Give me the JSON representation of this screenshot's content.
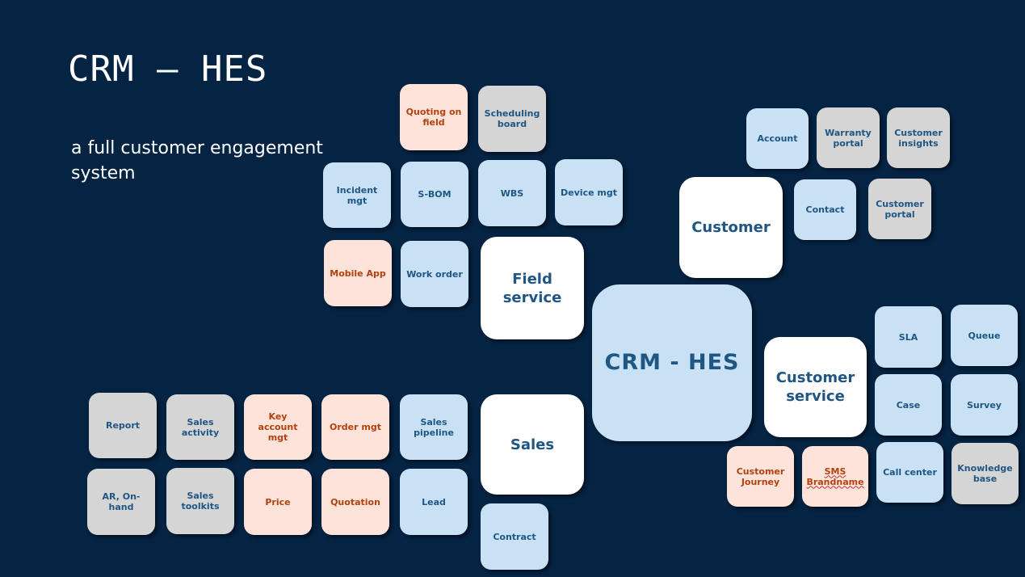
{
  "slide": {
    "title": "CRM – HES",
    "subtitle": "a full customer engagement system"
  },
  "hub": {
    "label": "CRM - HES"
  },
  "modules": {
    "field_service": "Field service",
    "customer": "Customer",
    "customer_service": "Customer service",
    "sales": "Sales"
  },
  "field_service_items": {
    "quoting_on_field": "Quoting on field",
    "scheduling_board": "Scheduling board",
    "incident_mgt": "Incident mgt",
    "s_bom": "S-BOM",
    "wbs": "WBS",
    "device_mgt": "Device mgt",
    "mobile_app": "Mobile App",
    "work_order": "Work order"
  },
  "customer_items": {
    "account": "Account",
    "warranty_portal": "Warranty portal",
    "customer_insights": "Customer insights",
    "contact": "Contact",
    "customer_portal": "Customer portal"
  },
  "customer_service_items": {
    "sla": "SLA",
    "queue": "Queue",
    "case": "Case",
    "survey": "Survey",
    "customer_journey": "Customer Journey",
    "sms_brandname": "SMS Brandname",
    "call_center": "Call center",
    "knowledge_base": "Knowledge base"
  },
  "sales_items": {
    "report": "Report",
    "sales_activity": "Sales activity",
    "key_account_mgt": "Key account mgt",
    "order_mgt": "Order mgt",
    "sales_pipeline": "Sales pipeline",
    "ar_on_hand": "AR, On-hand",
    "sales_toolkits": "Sales toolkits",
    "price": "Price",
    "quotation": "Quotation",
    "lead": "Lead",
    "contract": "Contract"
  },
  "colors": {
    "background": "#052343",
    "tile_blue": "#c9e1f4",
    "tile_grey": "#d5d5d5",
    "tile_peach": "#fde3d9",
    "tile_white": "#ffffff",
    "text_navy": "#1f5684",
    "text_orange": "#b2410e"
  }
}
